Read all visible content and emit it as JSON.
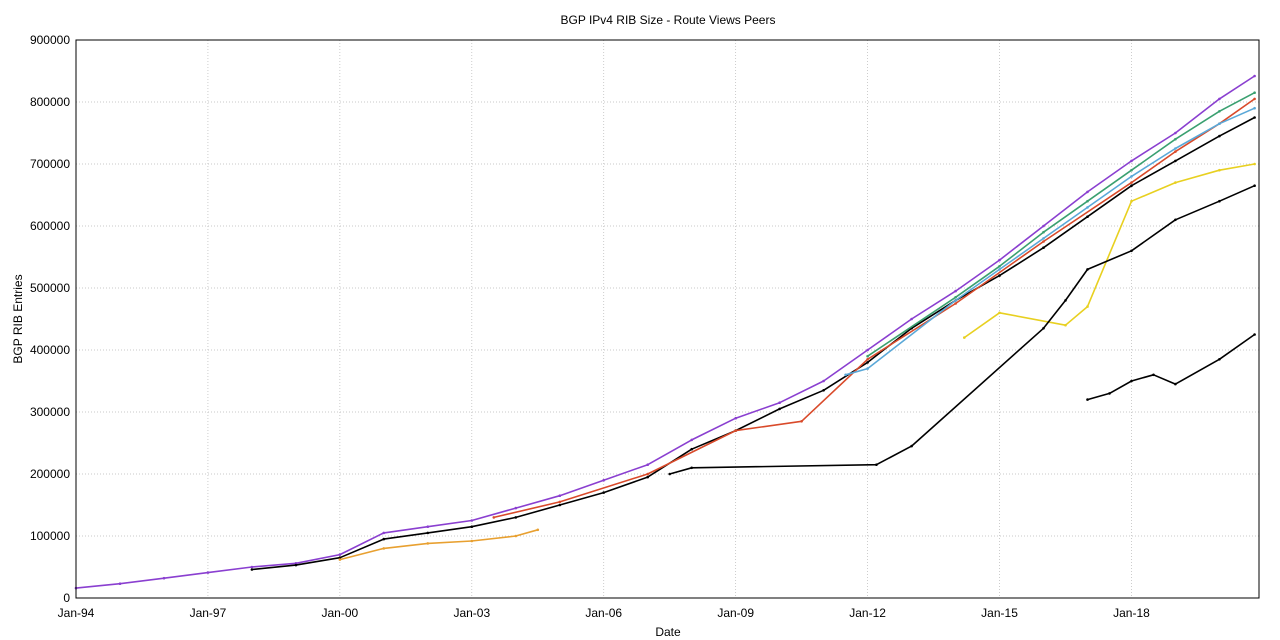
{
  "chart_data": {
    "type": "scatter",
    "title": "BGP IPv4 RIB Size - Route Views Peers",
    "xlabel": "Date",
    "ylabel": "BGP RIB Entries",
    "xlim": [
      1994.0,
      2020.9
    ],
    "ylim": [
      0,
      900000
    ],
    "x_ticks": [
      {
        "label": "Jan-94",
        "value": 1994
      },
      {
        "label": "Jan-97",
        "value": 1997
      },
      {
        "label": "Jan-00",
        "value": 2000
      },
      {
        "label": "Jan-03",
        "value": 2003
      },
      {
        "label": "Jan-06",
        "value": 2006
      },
      {
        "label": "Jan-09",
        "value": 2009
      },
      {
        "label": "Jan-12",
        "value": 2012
      },
      {
        "label": "Jan-15",
        "value": 2015
      },
      {
        "label": "Jan-18",
        "value": 2018
      }
    ],
    "y_ticks": [
      {
        "label": "0",
        "value": 0
      },
      {
        "label": "100000",
        "value": 100000
      },
      {
        "label": "200000",
        "value": 200000
      },
      {
        "label": "300000",
        "value": 300000
      },
      {
        "label": "400000",
        "value": 400000
      },
      {
        "label": "500000",
        "value": 500000
      },
      {
        "label": "600000",
        "value": 600000
      },
      {
        "label": "700000",
        "value": 700000
      },
      {
        "label": "800000",
        "value": 800000
      },
      {
        "label": "900000",
        "value": 900000
      }
    ],
    "grid": true,
    "legend": "none",
    "series": [
      {
        "color": "#8a3fd0",
        "x": [
          1994.0,
          1995.0,
          1996.0,
          1997.0,
          1998.0,
          1999.0,
          2000.0,
          2001.0,
          2002.0,
          2003.0,
          2004.0,
          2005.0,
          2006.0,
          2007.0,
          2008.0,
          2009.0,
          2010.0,
          2011.0,
          2012.0,
          2013.0,
          2014.0,
          2015.0,
          2016.0,
          2017.0,
          2018.0,
          2019.0,
          2020.0,
          2020.8
        ],
        "y": [
          16000,
          23000,
          32000,
          41000,
          50000,
          56000,
          70000,
          105000,
          115000,
          125000,
          145000,
          165000,
          190000,
          215000,
          255000,
          290000,
          315000,
          350000,
          400000,
          450000,
          495000,
          545000,
          600000,
          655000,
          705000,
          750000,
          805000,
          842000
        ]
      },
      {
        "color": "#000000",
        "x": [
          1998.0,
          1999.0,
          2000.0,
          2001.0,
          2002.0,
          2003.0,
          2004.0,
          2005.0,
          2006.0,
          2007.0,
          2008.0,
          2009.0,
          2010.0,
          2011.0,
          2012.0,
          2013.0,
          2014.0,
          2015.0,
          2016.0,
          2017.0,
          2018.0,
          2019.0,
          2020.0,
          2020.8
        ],
        "y": [
          46000,
          53000,
          65000,
          95000,
          105000,
          115000,
          130000,
          150000,
          170000,
          195000,
          240000,
          270000,
          305000,
          335000,
          380000,
          435000,
          480000,
          520000,
          565000,
          615000,
          665000,
          705000,
          745000,
          775000
        ]
      },
      {
        "color": "#d94a2a",
        "x": [
          2003.5,
          2005.0,
          2007.0,
          2009.0,
          2010.5,
          2012.0,
          2014.0,
          2016.0,
          2018.0,
          2019.0,
          2020.0,
          2020.8
        ],
        "y": [
          130000,
          155000,
          200000,
          270000,
          285000,
          385000,
          475000,
          575000,
          670000,
          720000,
          765000,
          805000
        ]
      },
      {
        "color": "#3aa070",
        "x": [
          2012.0,
          2014.0,
          2015.0,
          2016.0,
          2017.0,
          2018.0,
          2019.0,
          2020.0,
          2020.8
        ],
        "y": [
          390000,
          485000,
          535000,
          590000,
          640000,
          690000,
          740000,
          785000,
          815000
        ]
      },
      {
        "color": "#e8a030",
        "x": [
          2000.0,
          2001.0,
          2002.0,
          2003.0,
          2004.0,
          2004.5
        ],
        "y": [
          62000,
          80000,
          88000,
          92000,
          100000,
          110000
        ]
      },
      {
        "color": "#5aa8d8",
        "x": [
          2011.5,
          2012.0,
          2014.0,
          2015.0,
          2016.0,
          2017.0,
          2018.0,
          2019.0,
          2020.0,
          2020.8
        ],
        "y": [
          360000,
          370000,
          480000,
          530000,
          580000,
          630000,
          680000,
          725000,
          765000,
          790000
        ]
      },
      {
        "color": "#e8d020",
        "x": [
          2014.2,
          2015.0,
          2016.5,
          2017.0,
          2018.0,
          2019.0,
          2020.0,
          2020.8
        ],
        "y": [
          420000,
          460000,
          440000,
          470000,
          640000,
          670000,
          690000,
          700000
        ]
      },
      {
        "color": "#000000",
        "x": [
          2007.5,
          2008.0,
          2012.2,
          2013.0,
          2016.0,
          2016.5,
          2017.0,
          2018.0,
          2019.0,
          2020.0,
          2020.8
        ],
        "y": [
          200000,
          210000,
          215000,
          245000,
          435000,
          480000,
          530000,
          560000,
          610000,
          640000,
          665000
        ]
      },
      {
        "color": "#000000",
        "x": [
          2017.0,
          2017.5,
          2018.0,
          2018.5,
          2019.0,
          2020.0,
          2020.8
        ],
        "y": [
          320000,
          330000,
          350000,
          360000,
          345000,
          385000,
          425000
        ]
      }
    ]
  }
}
